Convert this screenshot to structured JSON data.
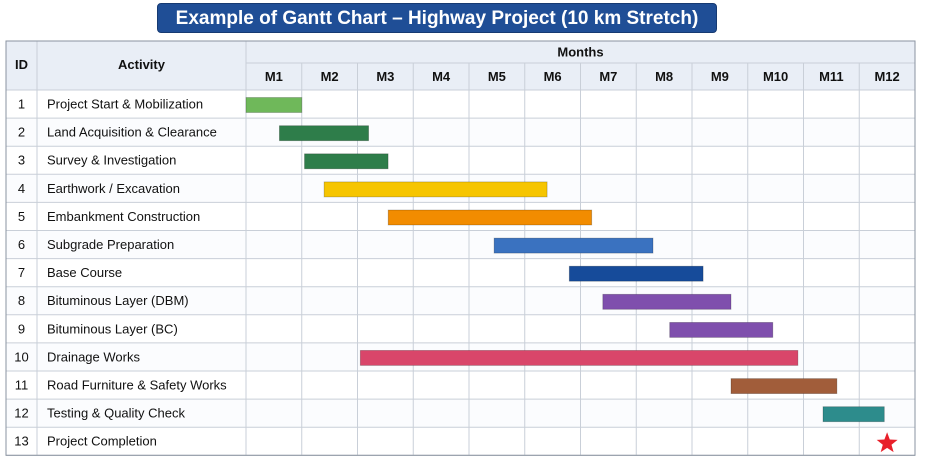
{
  "chart_title": "Example of Gantt Chart – Highway Project (10 km Stretch)",
  "colors": {
    "title_bg": "#1f4e96",
    "header_bg": "#e9eef6",
    "grid": "#c9cfd8",
    "border": "#8a93a0"
  },
  "chart_data": {
    "type": "gantt",
    "columns": {
      "id": "ID",
      "activity": "Activity",
      "months_group": "Months"
    },
    "months": [
      "M1",
      "M2",
      "M3",
      "M4",
      "M5",
      "M6",
      "M7",
      "M8",
      "M9",
      "M10",
      "M11",
      "M12"
    ],
    "tasks": [
      {
        "id": "1",
        "name": "Project Start & Mobilization",
        "start": 0.0,
        "end": 1.0,
        "color": "#6fb85a"
      },
      {
        "id": "2",
        "name": "Land Acquisition & Clearance",
        "start": 0.6,
        "end": 2.2,
        "color": "#2e7d4a"
      },
      {
        "id": "3",
        "name": "Survey & Investigation",
        "start": 1.05,
        "end": 2.55,
        "color": "#2e7d4a"
      },
      {
        "id": "4",
        "name": "Earthwork / Excavation",
        "start": 1.4,
        "end": 5.4,
        "color": "#f6c500"
      },
      {
        "id": "5",
        "name": "Embankment Construction",
        "start": 2.55,
        "end": 6.2,
        "color": "#f28c00"
      },
      {
        "id": "6",
        "name": "Subgrade Preparation",
        "start": 4.45,
        "end": 7.3,
        "color": "#3a72c0"
      },
      {
        "id": "7",
        "name": "Base Course",
        "start": 5.8,
        "end": 8.2,
        "color": "#164b9a"
      },
      {
        "id": "8",
        "name": "Bituminous Layer (DBM)",
        "start": 6.4,
        "end": 8.7,
        "color": "#7f4fad"
      },
      {
        "id": "9",
        "name": "Bituminous Layer (BC)",
        "start": 7.6,
        "end": 9.45,
        "color": "#7f4fad"
      },
      {
        "id": "10",
        "name": "Drainage Works",
        "start": 2.05,
        "end": 9.9,
        "color": "#d9466a"
      },
      {
        "id": "11",
        "name": "Road Furniture & Safety Works",
        "start": 8.7,
        "end": 10.6,
        "color": "#a15d3a"
      },
      {
        "id": "12",
        "name": "Testing & Quality Check",
        "start": 10.35,
        "end": 11.45,
        "color": "#2d8c8c"
      },
      {
        "id": "13",
        "name": "Project Completion",
        "milestone": 11.5,
        "color": "#e8202a"
      }
    ]
  }
}
